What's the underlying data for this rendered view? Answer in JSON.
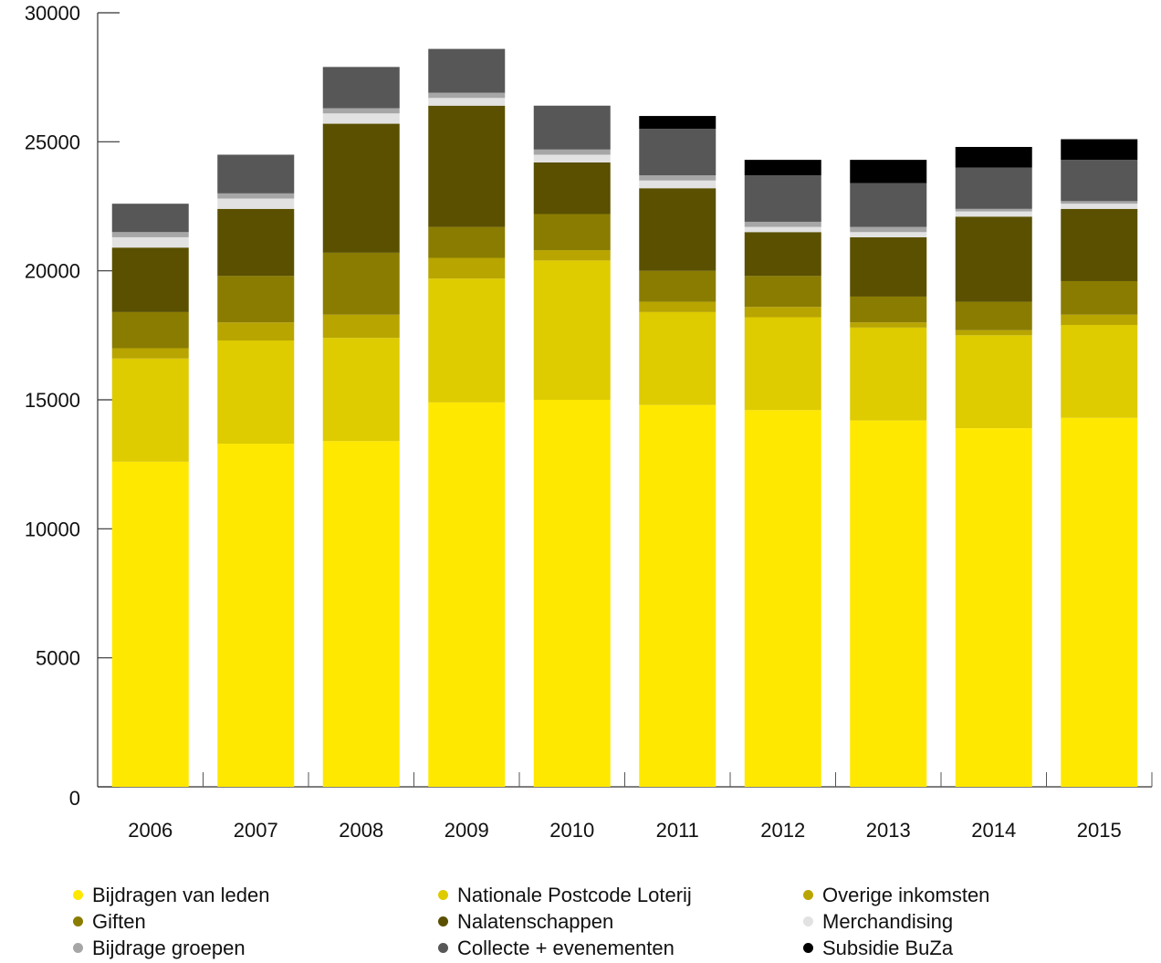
{
  "chart_data": {
    "type": "bar",
    "stacked": true,
    "categories": [
      "2006",
      "2007",
      "2008",
      "2009",
      "2010",
      "2011",
      "2012",
      "2013",
      "2014",
      "2015"
    ],
    "ylim": [
      0,
      30000
    ],
    "yticks": [
      "0",
      "5000",
      "10000",
      "15000",
      "20000",
      "25000",
      "30000"
    ],
    "xlabel": "",
    "ylabel": "",
    "legend_position": "bottom",
    "series": [
      {
        "name": "Bijdragen van leden",
        "color": "#ffe800",
        "values": [
          12600,
          13300,
          13400,
          14900,
          15000,
          14800,
          14600,
          14200,
          13900,
          14300
        ]
      },
      {
        "name": "Nationale Postcode Loterij",
        "color": "#decb00",
        "values": [
          4000,
          4000,
          4000,
          4800,
          5400,
          3600,
          3600,
          3600,
          3600,
          3600
        ]
      },
      {
        "name": "Overige inkomsten",
        "color": "#b8a500",
        "values": [
          400,
          700,
          900,
          800,
          400,
          400,
          400,
          200,
          200,
          400
        ]
      },
      {
        "name": "Giften",
        "color": "#8a7c00",
        "values": [
          1400,
          1800,
          2400,
          1200,
          1400,
          1200,
          1200,
          1000,
          1100,
          1300
        ]
      },
      {
        "name": "Nalatenschappen",
        "color": "#5a5000",
        "values": [
          2500,
          2600,
          5000,
          4700,
          2000,
          3200,
          1700,
          2300,
          3300,
          2800
        ]
      },
      {
        "name": "Merchandising",
        "color": "#e2e2e2",
        "values": [
          400,
          400,
          400,
          300,
          300,
          300,
          200,
          200,
          200,
          200
        ]
      },
      {
        "name": "Bijdrage groepen",
        "color": "#a6a6a6",
        "values": [
          200,
          200,
          200,
          200,
          200,
          200,
          200,
          200,
          100,
          100
        ]
      },
      {
        "name": "Collecte + evenementen",
        "color": "#575757",
        "values": [
          1100,
          1500,
          1600,
          1700,
          1700,
          1800,
          1800,
          1700,
          1600,
          1600
        ]
      },
      {
        "name": "Subsidie BuZa",
        "color": "#000000",
        "values": [
          0,
          0,
          0,
          0,
          0,
          500,
          600,
          900,
          800,
          800
        ]
      }
    ]
  }
}
